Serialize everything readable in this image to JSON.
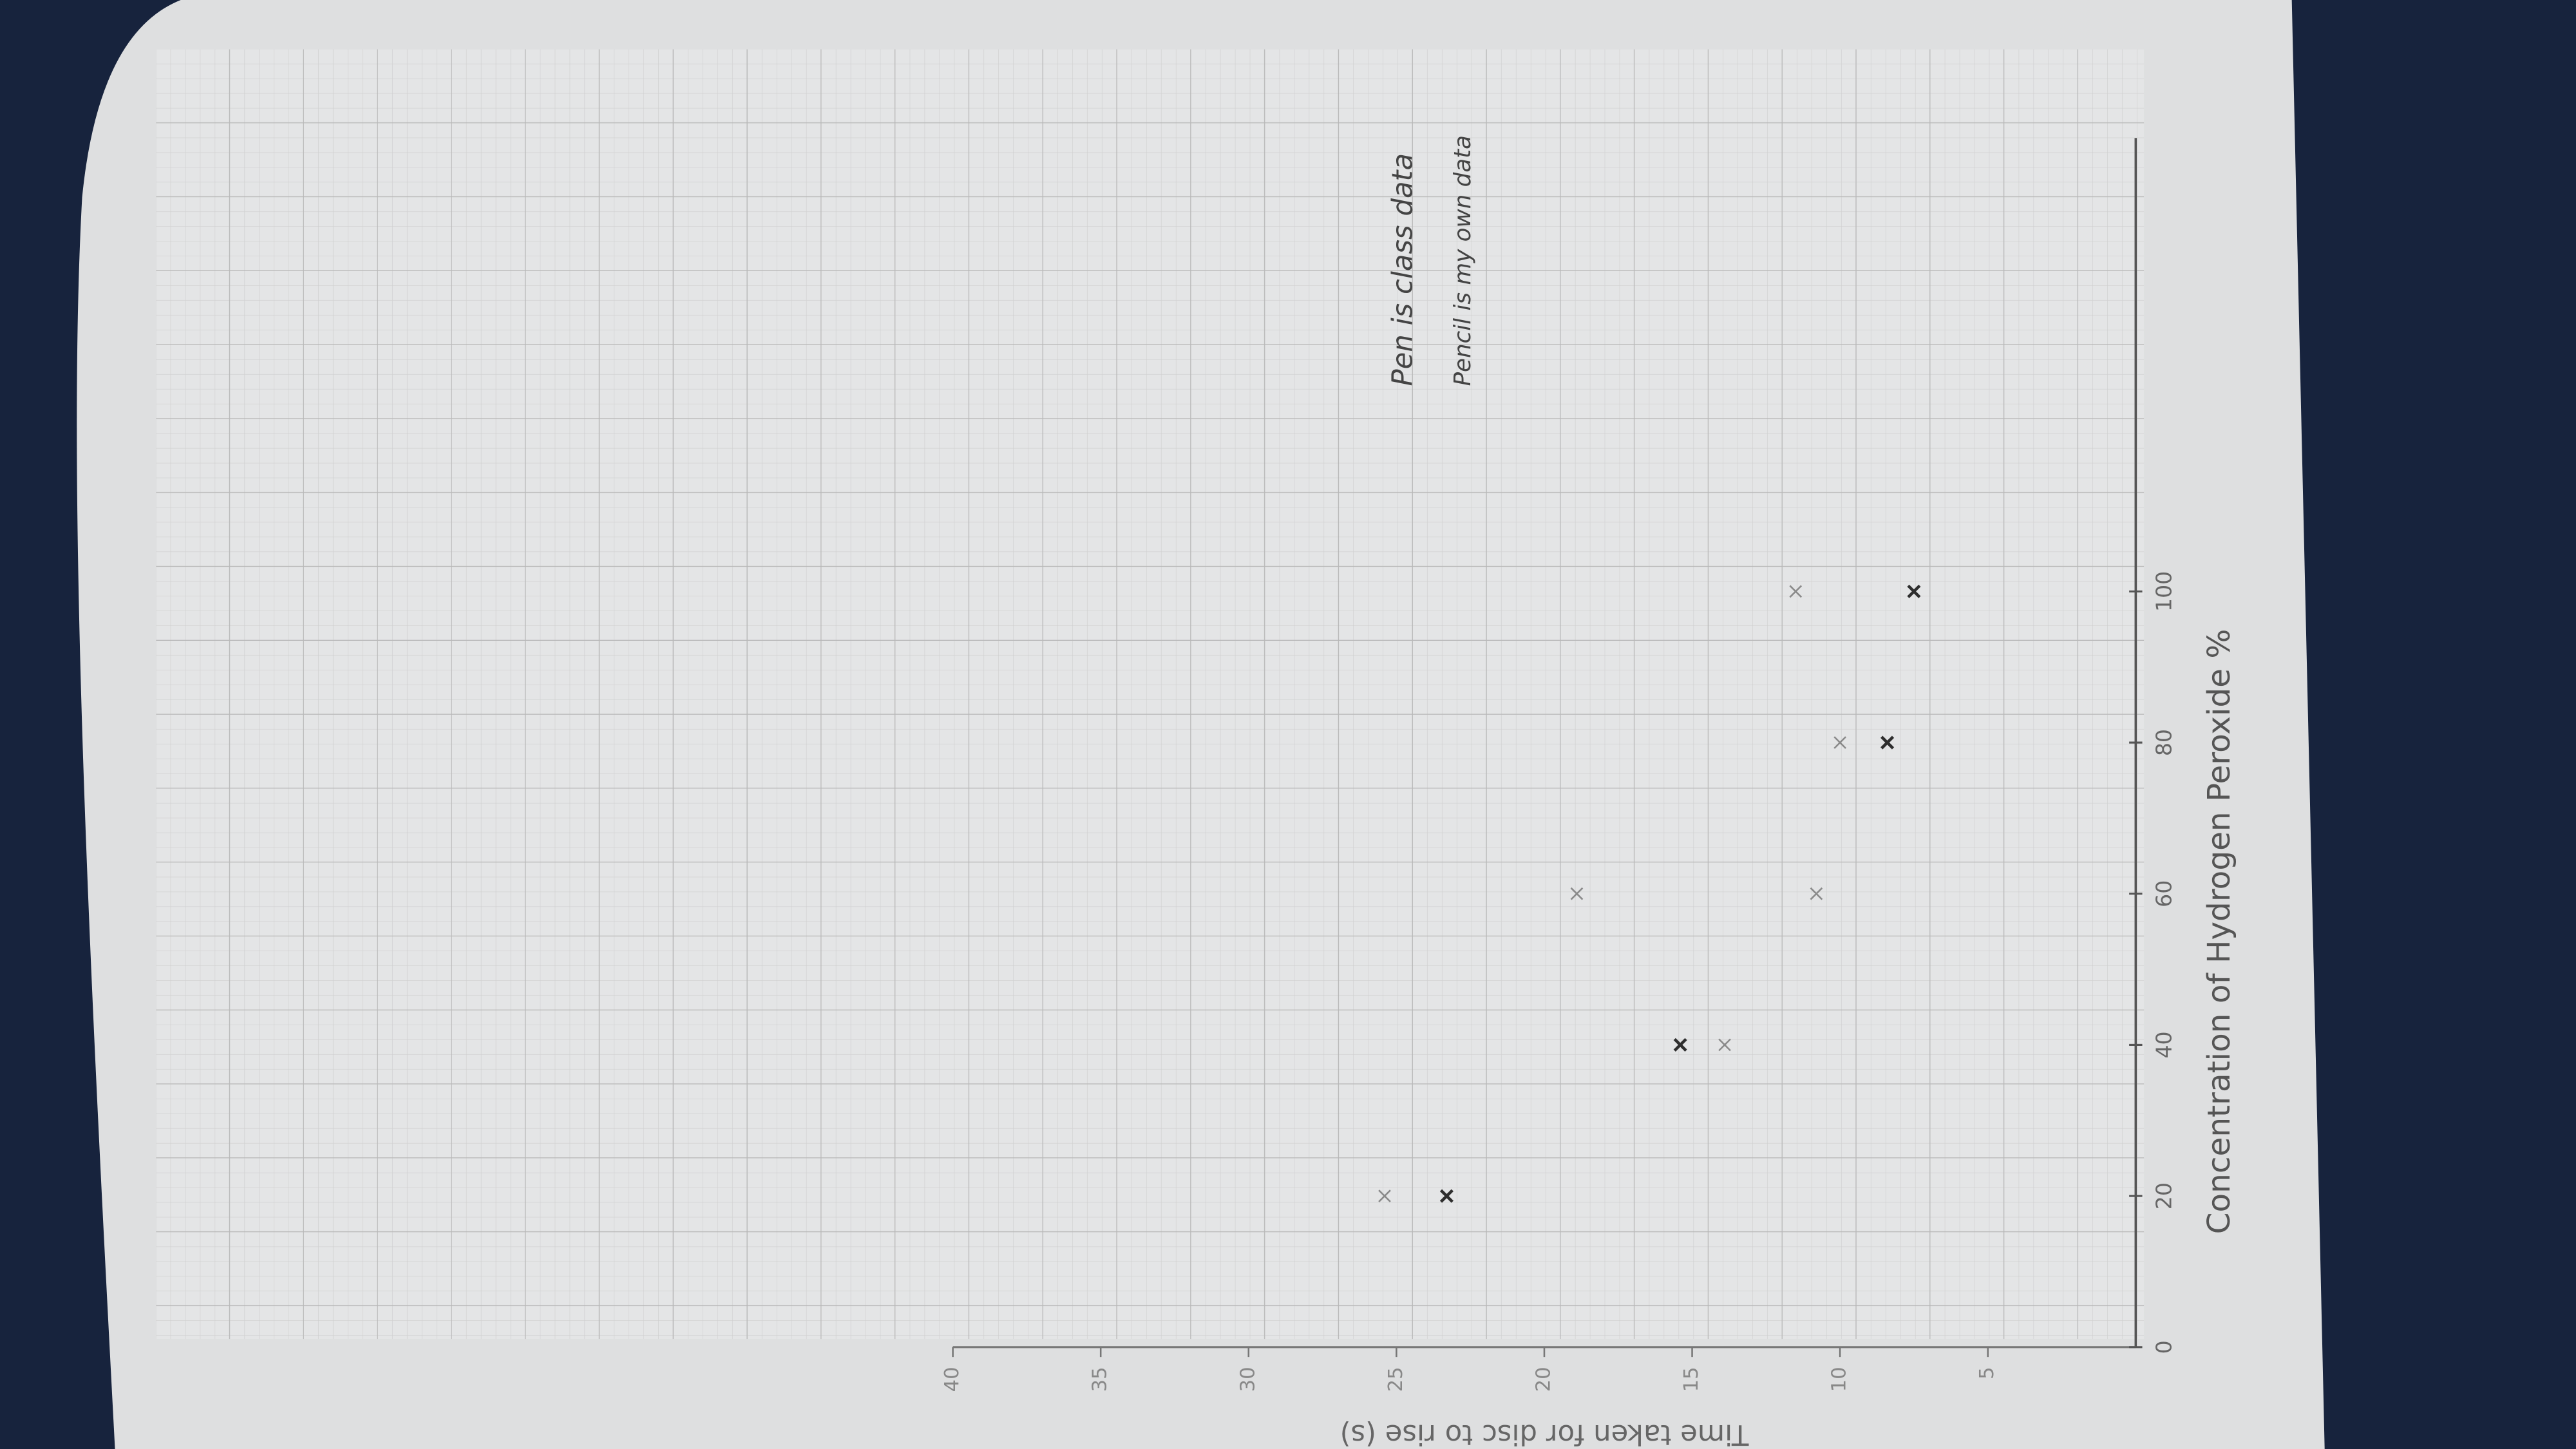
{
  "chart_data": {
    "type": "scatter",
    "x_label": "Concentration of Hydrogen Peroxide %",
    "y_label": "Time taken for disc to rise (s)",
    "annotations": [
      "Pen is class data",
      "Pencil is my own data"
    ],
    "series": [
      {
        "name": "Pen",
        "color": "#2e2e2e",
        "x": [
          20,
          40,
          80,
          100
        ],
        "values": [
          23.3,
          15.4,
          8.4,
          7.5
        ]
      },
      {
        "name": "Pencil",
        "color": "#8a8a8a",
        "x": [
          20,
          40,
          60,
          60,
          80,
          100
        ],
        "values": [
          25.4,
          13.9,
          18.9,
          10.8,
          10,
          11.5
        ]
      }
    ],
    "xlim": [
      0,
      160
    ],
    "xticks": [
      0,
      20,
      40,
      60,
      80,
      100
    ],
    "ylim": [
      0,
      40
    ],
    "yticks": [
      5,
      10,
      15,
      20,
      25,
      30,
      35,
      40
    ]
  }
}
